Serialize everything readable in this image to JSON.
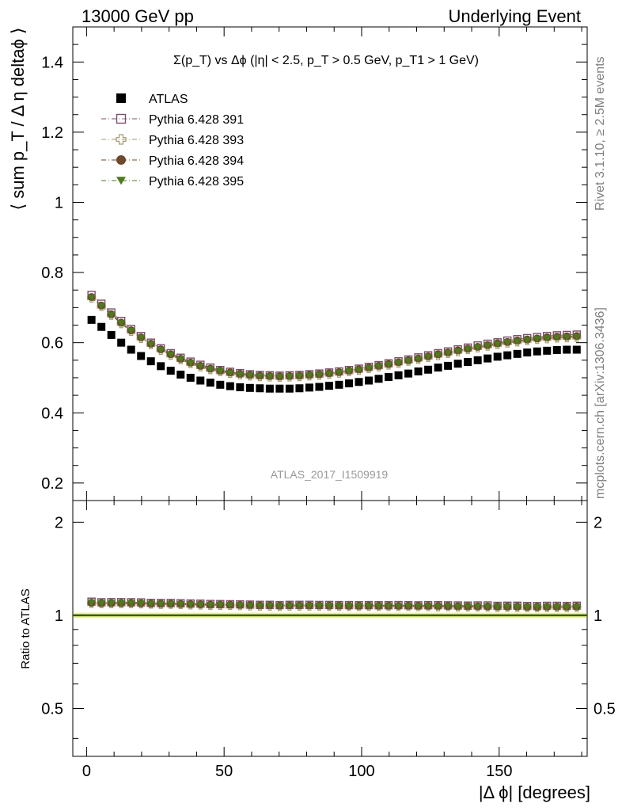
{
  "header": {
    "left": "13000 GeV pp",
    "right": "Underlying Event"
  },
  "side_labels": {
    "rivet": "Rivet 3.1.10, ≥ 2.5M events",
    "mcplots": "mcplots.cern.ch [arXiv:1306.3436]"
  },
  "chart_data": [
    {
      "type": "scatter",
      "title": "Σ(p_T) vs Δϕ (|η| < 2.5, p_T > 0.5 GeV, p_T1 > 1 GeV)",
      "ylabel": "⟨ sum p_T / Δ η deltaϕ ⟩",
      "xlabel": "",
      "watermark": "ATLAS_2017_I1509919",
      "xlim": [
        -5,
        182
      ],
      "ylim": [
        0.15,
        1.5
      ],
      "y_ticks": [
        0.2,
        0.4,
        0.6,
        0.8,
        1,
        1.2,
        1.4
      ],
      "y_tick_labels": [
        "0.2",
        "0.4",
        "0.6",
        "0.8",
        "1",
        "1.2",
        "1.4"
      ],
      "legend_position": "top-left",
      "x": [
        1.8,
        5.4,
        9.0,
        12.6,
        16.2,
        19.8,
        23.4,
        27.0,
        30.6,
        34.2,
        37.8,
        41.4,
        45.0,
        48.6,
        52.2,
        55.8,
        59.4,
        63.0,
        66.6,
        70.2,
        73.8,
        77.4,
        81.0,
        84.6,
        88.2,
        91.8,
        95.4,
        99.0,
        102.6,
        106.2,
        109.8,
        113.4,
        117.0,
        120.6,
        124.2,
        127.8,
        131.4,
        135.0,
        138.6,
        142.2,
        145.8,
        149.4,
        153.0,
        156.6,
        160.2,
        163.8,
        167.4,
        171.0,
        174.6,
        178.2
      ],
      "series": [
        {
          "name": "ATLAS",
          "color": "#000000",
          "marker": "filled-square",
          "values": [
            0.665,
            0.645,
            0.622,
            0.6,
            0.58,
            0.562,
            0.547,
            0.533,
            0.52,
            0.509,
            0.5,
            0.492,
            0.486,
            0.48,
            0.476,
            0.473,
            0.471,
            0.47,
            0.469,
            0.469,
            0.469,
            0.47,
            0.472,
            0.474,
            0.477,
            0.48,
            0.484,
            0.488,
            0.492,
            0.497,
            0.502,
            0.507,
            0.512,
            0.518,
            0.523,
            0.529,
            0.534,
            0.54,
            0.545,
            0.55,
            0.555,
            0.56,
            0.564,
            0.568,
            0.572,
            0.575,
            0.577,
            0.579,
            0.58,
            0.58
          ]
        },
        {
          "name": "Pythia 6.428 391",
          "color": "#7b4e6b",
          "marker": "open-square",
          "values": [
            0.736,
            0.711,
            0.686,
            0.662,
            0.639,
            0.619,
            0.6,
            0.584,
            0.57,
            0.557,
            0.546,
            0.537,
            0.529,
            0.522,
            0.517,
            0.513,
            0.51,
            0.508,
            0.507,
            0.506,
            0.507,
            0.508,
            0.51,
            0.512,
            0.515,
            0.518,
            0.522,
            0.526,
            0.531,
            0.536,
            0.541,
            0.547,
            0.552,
            0.558,
            0.564,
            0.57,
            0.575,
            0.581,
            0.586,
            0.592,
            0.597,
            0.601,
            0.606,
            0.61,
            0.613,
            0.616,
            0.619,
            0.621,
            0.622,
            0.623
          ]
        },
        {
          "name": "Pythia 6.428 393",
          "color": "#a89a72",
          "marker": "open-cross",
          "values": [
            0.727,
            0.703,
            0.678,
            0.654,
            0.632,
            0.612,
            0.594,
            0.578,
            0.564,
            0.551,
            0.54,
            0.531,
            0.523,
            0.517,
            0.512,
            0.508,
            0.505,
            0.503,
            0.502,
            0.501,
            0.502,
            0.503,
            0.505,
            0.507,
            0.51,
            0.513,
            0.517,
            0.521,
            0.526,
            0.531,
            0.536,
            0.541,
            0.547,
            0.552,
            0.558,
            0.563,
            0.569,
            0.574,
            0.58,
            0.585,
            0.59,
            0.594,
            0.599,
            0.602,
            0.606,
            0.609,
            0.611,
            0.613,
            0.614,
            0.615
          ]
        },
        {
          "name": "Pythia 6.428 394",
          "color": "#6b4a2e",
          "marker": "filled-circle",
          "values": [
            0.73,
            0.706,
            0.681,
            0.657,
            0.635,
            0.615,
            0.597,
            0.581,
            0.567,
            0.554,
            0.543,
            0.534,
            0.526,
            0.52,
            0.515,
            0.511,
            0.508,
            0.506,
            0.505,
            0.504,
            0.505,
            0.506,
            0.508,
            0.51,
            0.513,
            0.516,
            0.52,
            0.524,
            0.529,
            0.534,
            0.539,
            0.544,
            0.55,
            0.555,
            0.561,
            0.567,
            0.572,
            0.578,
            0.583,
            0.588,
            0.593,
            0.598,
            0.602,
            0.606,
            0.609,
            0.612,
            0.615,
            0.617,
            0.618,
            0.619
          ]
        },
        {
          "name": "Pythia 6.428 395",
          "color": "#4e7a1e",
          "marker": "filled-triangle-down",
          "values": [
            0.728,
            0.704,
            0.679,
            0.655,
            0.633,
            0.613,
            0.595,
            0.579,
            0.565,
            0.552,
            0.541,
            0.532,
            0.524,
            0.518,
            0.513,
            0.509,
            0.506,
            0.504,
            0.503,
            0.502,
            0.503,
            0.504,
            0.506,
            0.508,
            0.511,
            0.514,
            0.518,
            0.522,
            0.527,
            0.532,
            0.537,
            0.542,
            0.548,
            0.553,
            0.559,
            0.564,
            0.57,
            0.575,
            0.581,
            0.586,
            0.591,
            0.595,
            0.6,
            0.603,
            0.607,
            0.61,
            0.612,
            0.614,
            0.615,
            0.616
          ]
        }
      ]
    },
    {
      "type": "scatter",
      "title": "",
      "ylabel": "Ratio to ATLAS",
      "xlabel": "|Δ ϕ| [degrees]",
      "xlim": [
        -5,
        182
      ],
      "ylim": [
        0.35,
        2.35
      ],
      "x_ticks": [
        0,
        50,
        100,
        150
      ],
      "x_tick_labels": [
        "0",
        "50",
        "100",
        "150"
      ],
      "y_ticks": [
        0.5,
        1,
        2
      ],
      "y_tick_labels": [
        "0.5",
        "1",
        "2"
      ],
      "reference_line": 1,
      "reference_band": [
        0.98,
        1.02
      ],
      "reference_band_color": "#f0f0a0",
      "reference_line_color": "#000000",
      "reference_line_color_2": "#7fbf3f",
      "series": [
        {
          "name": "Pythia 6.428 391",
          "color": "#7b4e6b",
          "marker": "open-square",
          "values": [
            1.107,
            1.102,
            1.103,
            1.103,
            1.102,
            1.101,
            1.097,
            1.096,
            1.096,
            1.094,
            1.092,
            1.091,
            1.088,
            1.087,
            1.086,
            1.085,
            1.083,
            1.081,
            1.081,
            1.079,
            1.081,
            1.081,
            1.081,
            1.08,
            1.08,
            1.079,
            1.079,
            1.078,
            1.079,
            1.078,
            1.078,
            1.079,
            1.078,
            1.077,
            1.078,
            1.078,
            1.077,
            1.076,
            1.075,
            1.076,
            1.076,
            1.073,
            1.074,
            1.074,
            1.072,
            1.071,
            1.073,
            1.073,
            1.072,
            1.074
          ]
        },
        {
          "name": "Pythia 6.428 393",
          "color": "#a89a72",
          "marker": "open-cross",
          "values": [
            1.093,
            1.09,
            1.09,
            1.09,
            1.09,
            1.089,
            1.086,
            1.084,
            1.085,
            1.083,
            1.08,
            1.079,
            1.076,
            1.077,
            1.076,
            1.074,
            1.072,
            1.07,
            1.07,
            1.068,
            1.07,
            1.07,
            1.07,
            1.07,
            1.069,
            1.069,
            1.068,
            1.068,
            1.069,
            1.068,
            1.068,
            1.067,
            1.068,
            1.066,
            1.067,
            1.064,
            1.066,
            1.063,
            1.064,
            1.064,
            1.063,
            1.061,
            1.062,
            1.06,
            1.059,
            1.059,
            1.059,
            1.059,
            1.059,
            1.06
          ]
        },
        {
          "name": "Pythia 6.428 394",
          "color": "#6b4a2e",
          "marker": "filled-circle",
          "values": [
            1.098,
            1.095,
            1.095,
            1.095,
            1.095,
            1.094,
            1.091,
            1.09,
            1.09,
            1.088,
            1.086,
            1.085,
            1.082,
            1.083,
            1.082,
            1.08,
            1.079,
            1.077,
            1.077,
            1.075,
            1.077,
            1.077,
            1.076,
            1.076,
            1.075,
            1.075,
            1.074,
            1.074,
            1.075,
            1.074,
            1.074,
            1.073,
            1.074,
            1.072,
            1.073,
            1.072,
            1.071,
            1.07,
            1.07,
            1.069,
            1.068,
            1.068,
            1.067,
            1.067,
            1.065,
            1.064,
            1.066,
            1.066,
            1.066,
            1.067
          ]
        },
        {
          "name": "Pythia 6.428 395",
          "color": "#4e7a1e",
          "marker": "filled-triangle-down",
          "values": [
            1.095,
            1.092,
            1.092,
            1.092,
            1.091,
            1.091,
            1.088,
            1.086,
            1.087,
            1.085,
            1.082,
            1.081,
            1.078,
            1.079,
            1.078,
            1.076,
            1.074,
            1.072,
            1.073,
            1.07,
            1.073,
            1.072,
            1.072,
            1.072,
            1.071,
            1.071,
            1.07,
            1.07,
            1.071,
            1.07,
            1.07,
            1.069,
            1.07,
            1.068,
            1.069,
            1.066,
            1.068,
            1.065,
            1.066,
            1.066,
            1.065,
            1.063,
            1.064,
            1.062,
            1.061,
            1.061,
            1.061,
            1.061,
            1.06,
            1.062
          ]
        }
      ]
    }
  ]
}
